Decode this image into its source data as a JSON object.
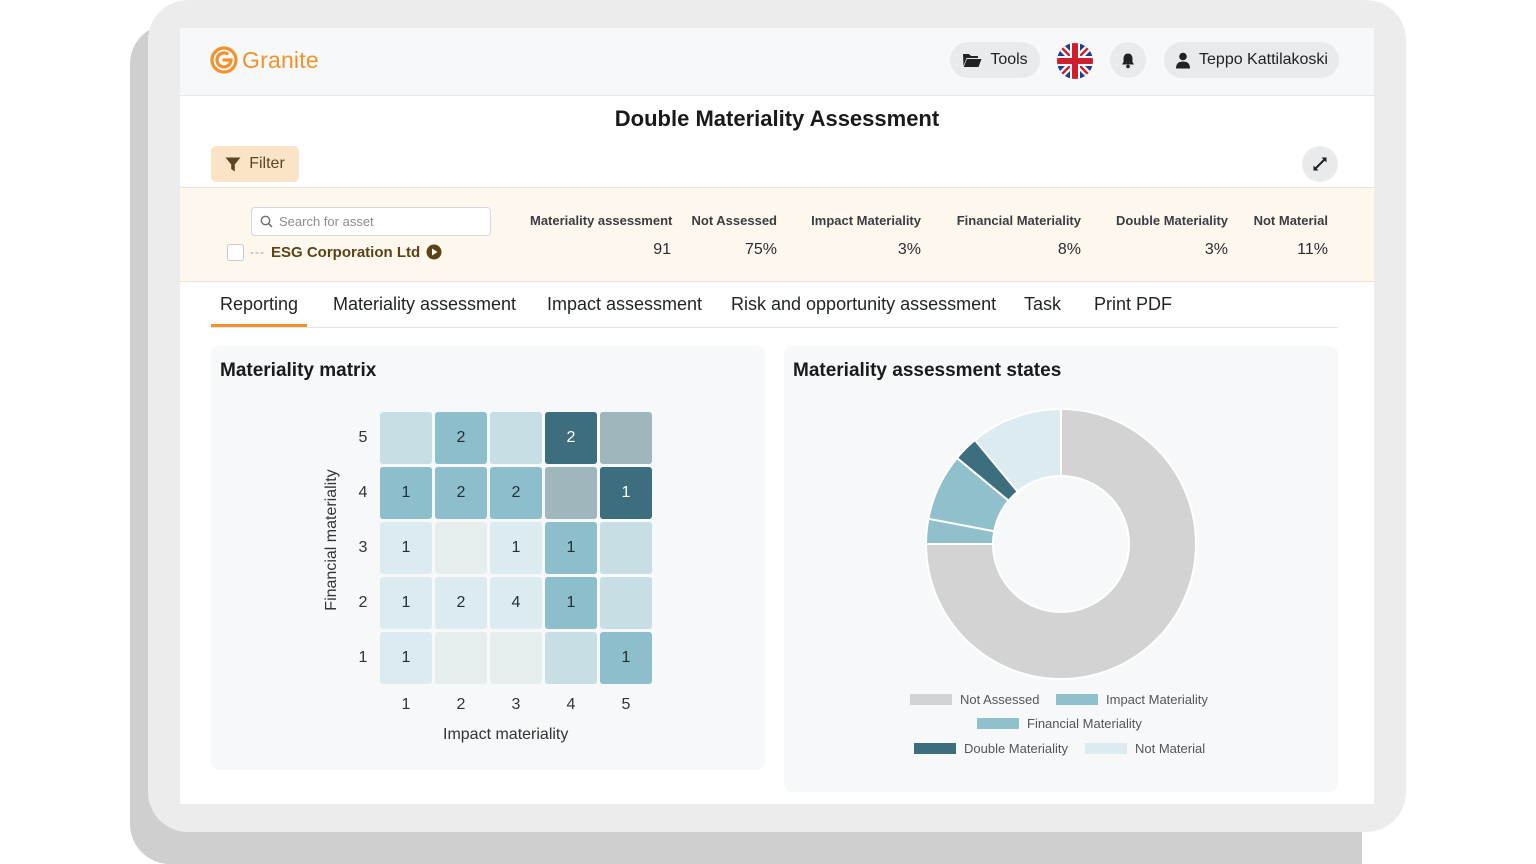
{
  "app": {
    "brand": "Granite"
  },
  "header": {
    "tools_label": "Tools",
    "user_name": "Teppo Kattilakoski"
  },
  "page": {
    "title": "Double Materiality Assessment",
    "filter_label": "Filter"
  },
  "summary": {
    "search_placeholder": "Search for asset",
    "asset_name": "ESG Corporation Ltd",
    "stats": [
      {
        "label": "Materiality assessment",
        "value": "91"
      },
      {
        "label": "Not Assessed",
        "value": "75%"
      },
      {
        "label": "Impact Materiality",
        "value": "3%"
      },
      {
        "label": "Financial Materiality",
        "value": "8%"
      },
      {
        "label": "Double Materiality",
        "value": "3%"
      },
      {
        "label": "Not Material",
        "value": "11%"
      }
    ]
  },
  "tabs": [
    {
      "label": "Reporting",
      "active": true
    },
    {
      "label": "Materiality assessment"
    },
    {
      "label": "Impact assessment"
    },
    {
      "label": "Risk and opportunity assessment"
    },
    {
      "label": "Task"
    },
    {
      "label": "Print PDF"
    }
  ],
  "chart_data": [
    {
      "type": "heatmap",
      "title": "Materiality matrix",
      "xlabel": "Impact materiality",
      "ylabel": "Financial materiality",
      "x_ticks": [
        "1",
        "2",
        "3",
        "4",
        "5"
      ],
      "y_ticks": [
        "5",
        "4",
        "3",
        "2",
        "1"
      ],
      "rows": [
        {
          "y": "5",
          "cells": [
            {
              "x": 1,
              "label": "",
              "color": "#c7dee5"
            },
            {
              "x": 2,
              "label": "2",
              "color": "#8dbecc"
            },
            {
              "x": 3,
              "label": "",
              "color": "#c7dee5"
            },
            {
              "x": 4,
              "label": "2",
              "color": "#3d6e7e"
            },
            {
              "x": 5,
              "label": "",
              "color": "#9fb6bd"
            }
          ]
        },
        {
          "y": "4",
          "cells": [
            {
              "x": 1,
              "label": "1",
              "color": "#8dbecc"
            },
            {
              "x": 2,
              "label": "2",
              "color": "#8dbecc"
            },
            {
              "x": 3,
              "label": "2",
              "color": "#8dbecc"
            },
            {
              "x": 4,
              "label": "",
              "color": "#9fb6bd"
            },
            {
              "x": 5,
              "label": "1",
              "color": "#3d6e7e"
            }
          ]
        },
        {
          "y": "3",
          "cells": [
            {
              "x": 1,
              "label": "1",
              "color": "#dcebf0"
            },
            {
              "x": 2,
              "label": "",
              "color": "#e6edef"
            },
            {
              "x": 3,
              "label": "1",
              "color": "#dcebf0"
            },
            {
              "x": 4,
              "label": "1",
              "color": "#8dbecc"
            },
            {
              "x": 5,
              "label": "",
              "color": "#c7dee5"
            }
          ]
        },
        {
          "y": "2",
          "cells": [
            {
              "x": 1,
              "label": "1",
              "color": "#dcebf0"
            },
            {
              "x": 2,
              "label": "2",
              "color": "#dcebf0"
            },
            {
              "x": 3,
              "label": "4",
              "color": "#dcebf0"
            },
            {
              "x": 4,
              "label": "1",
              "color": "#8dbecc"
            },
            {
              "x": 5,
              "label": "",
              "color": "#c7dee5"
            }
          ]
        },
        {
          "y": "1",
          "cells": [
            {
              "x": 1,
              "label": "1",
              "color": "#dcebf0"
            },
            {
              "x": 2,
              "label": "",
              "color": "#e6edef"
            },
            {
              "x": 3,
              "label": "",
              "color": "#e6edef"
            },
            {
              "x": 4,
              "label": "",
              "color": "#c7dee5"
            },
            {
              "x": 5,
              "label": "1",
              "color": "#8dbecc"
            }
          ]
        }
      ]
    },
    {
      "type": "pie",
      "title": "Materiality assessment states",
      "donut": true,
      "slices": [
        {
          "name": "Not Assessed",
          "value": 75,
          "color": "#d3d3d3"
        },
        {
          "name": "Impact Materiality",
          "value": 3,
          "color": "#90c0cc"
        },
        {
          "name": "Financial Materiality",
          "value": 8,
          "color": "#90c0cc"
        },
        {
          "name": "Double Materiality",
          "value": 3,
          "color": "#3d6e7e"
        },
        {
          "name": "Not Material",
          "value": 11,
          "color": "#dcebf0"
        }
      ],
      "legend": [
        {
          "name": "Not Assessed",
          "color": "#d3d3d3"
        },
        {
          "name": "Impact Materiality",
          "color": "#90c0cc"
        },
        {
          "name": "Financial Materiality",
          "color": "#90c0cc"
        },
        {
          "name": "Double Materiality",
          "color": "#3d6e7e"
        },
        {
          "name": "Not Material",
          "color": "#dcebf0"
        }
      ]
    }
  ]
}
